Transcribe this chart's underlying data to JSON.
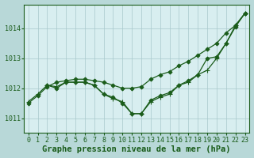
{
  "background_color": "#b8d8d8",
  "plot_bg_color": "#d8eef0",
  "grid_color": "#a8c8cc",
  "line_color": "#1a5c1a",
  "xlabel": "Graphe pression niveau de la mer (hPa)",
  "xlabel_fontsize": 7.5,
  "tick_fontsize": 6.0,
  "yticks": [
    1011,
    1012,
    1013,
    1014
  ],
  "ylim": [
    1010.5,
    1014.8
  ],
  "xlim": [
    -0.5,
    23.5
  ],
  "xticks": [
    0,
    1,
    2,
    3,
    4,
    5,
    6,
    7,
    8,
    9,
    10,
    11,
    12,
    13,
    14,
    15,
    16,
    17,
    18,
    19,
    20,
    21,
    22,
    23
  ],
  "series": [
    {
      "x": [
        0,
        1,
        2,
        3,
        4,
        5,
        6,
        7,
        8,
        9,
        10,
        11,
        12,
        13,
        14,
        15,
        16,
        17,
        18,
        19,
        20,
        21,
        22,
        23
      ],
      "y": [
        1011.5,
        1011.75,
        1012.05,
        1012.2,
        1012.25,
        1012.3,
        1012.3,
        1012.25,
        1012.2,
        1012.1,
        1012.0,
        1012.0,
        1012.05,
        1012.3,
        1012.45,
        1012.55,
        1012.75,
        1012.9,
        1013.1,
        1013.3,
        1013.5,
        1013.85,
        1014.1,
        1014.5
      ],
      "marker": "D",
      "markersize": 2.5,
      "linewidth": 0.9
    },
    {
      "x": [
        0,
        1,
        2,
        3,
        4,
        5,
        6,
        7,
        8,
        9,
        10,
        11,
        12,
        13,
        14,
        15,
        16,
        17,
        18,
        19,
        20,
        21,
        22,
        23
      ],
      "y": [
        1011.55,
        1011.8,
        1012.1,
        1012.05,
        1012.2,
        1012.2,
        1012.2,
        1012.1,
        1011.8,
        1011.65,
        1011.55,
        1011.15,
        1011.15,
        1011.55,
        1011.7,
        1011.8,
        1012.1,
        1012.2,
        1012.45,
        1012.6,
        1013.0,
        1013.5,
        1014.1,
        1014.5
      ],
      "marker": "+",
      "markersize": 4,
      "linewidth": 0.9
    },
    {
      "x": [
        2,
        3,
        4,
        5,
        6,
        7,
        8,
        9,
        10,
        11,
        12,
        13,
        14,
        15,
        16,
        17,
        18,
        19,
        20,
        21,
        22,
        23
      ],
      "y": [
        1012.1,
        1012.0,
        1012.2,
        1012.2,
        1012.2,
        1012.1,
        1011.8,
        1011.7,
        1011.5,
        1011.15,
        1011.15,
        1011.6,
        1011.75,
        1011.85,
        1012.1,
        1012.25,
        1012.45,
        1013.0,
        1013.05,
        1013.5,
        1014.05,
        1014.5
      ],
      "marker": "D",
      "markersize": 2.5,
      "linewidth": 0.9
    }
  ]
}
